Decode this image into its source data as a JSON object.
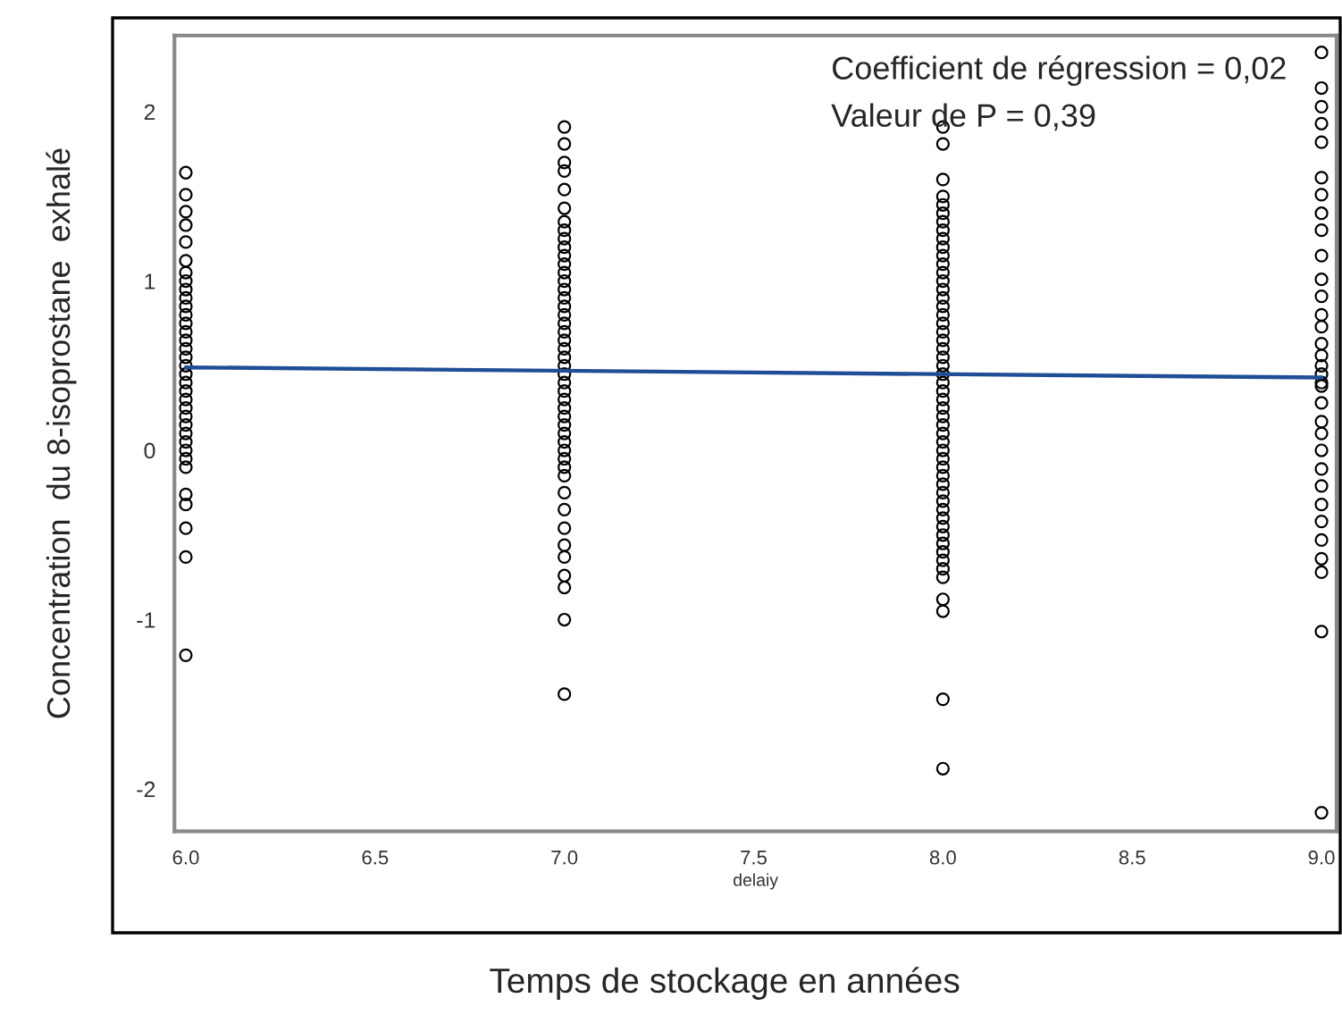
{
  "chart_data": {
    "type": "scatter",
    "xlabel": "delaiy",
    "ylabel": "Concentration  du 8-isoprostane  exhalé",
    "annotations": [
      "Coefficient de régression = 0,02",
      "Valeur de P = 0,39",
      "Temps de stockage en années"
    ],
    "xlim": [
      5.97,
      9.04
    ],
    "ylim": [
      -2.25,
      2.45
    ],
    "xticks": [
      {
        "value": 6,
        "label": "6.0"
      },
      {
        "value": 6.5,
        "label": "6.5"
      },
      {
        "value": 7,
        "label": "7.0"
      },
      {
        "value": 7.5,
        "label": "7.5"
      },
      {
        "value": 8,
        "label": "8.0"
      },
      {
        "value": 8.5,
        "label": "8.5"
      },
      {
        "value": 9,
        "label": "9.0"
      }
    ],
    "yticks": [
      -2,
      -1,
      0,
      1,
      2
    ],
    "marker": "circle",
    "series": [
      {
        "color": "#000000",
        "x": [
          6,
          6,
          6,
          6,
          6,
          6,
          6,
          6,
          6,
          6,
          6,
          6,
          6,
          6,
          6,
          6,
          6,
          6,
          6,
          6,
          6,
          6,
          6,
          6,
          6,
          6,
          6,
          6,
          6,
          6,
          6,
          6,
          6,
          6,
          6,
          7,
          7,
          7,
          7,
          7,
          7,
          7,
          7,
          7,
          7,
          7,
          7,
          7,
          7,
          7,
          7,
          7,
          7,
          7,
          7,
          7,
          7,
          7,
          7,
          7,
          7,
          7,
          7,
          7,
          7,
          7,
          7,
          7,
          7,
          7,
          7,
          7,
          7,
          7,
          7,
          7,
          7,
          7,
          7,
          7,
          7,
          8,
          8,
          8,
          8,
          8,
          8,
          8,
          8,
          8,
          8,
          8,
          8,
          8,
          8,
          8,
          8,
          8,
          8,
          8,
          8,
          8,
          8,
          8,
          8,
          8,
          8,
          8,
          8,
          8,
          8,
          8,
          8,
          8,
          8,
          8,
          8,
          8,
          8,
          8,
          8,
          8,
          8,
          8,
          8,
          8,
          8,
          8,
          8,
          8,
          8,
          8,
          8,
          8,
          9,
          9,
          9,
          9,
          9,
          9,
          9,
          9,
          9,
          9,
          9,
          9,
          9,
          9,
          9,
          9,
          9,
          9,
          9,
          9,
          9,
          9,
          9,
          9,
          9,
          9,
          9,
          9,
          9,
          9,
          9,
          9,
          9
        ],
        "values": [
          1.64,
          1.51,
          1.41,
          1.33,
          1.23,
          1.12,
          -0.1,
          -0.05,
          0,
          0.05,
          0.1,
          0.15,
          0.2,
          0.25,
          0.3,
          0.35,
          0.4,
          0.45,
          0.5,
          0.55,
          0.6,
          0.65,
          0.7,
          0.75,
          0.8,
          0.85,
          0.9,
          0.95,
          1.0,
          1.05,
          -0.26,
          -0.32,
          -0.46,
          -0.63,
          -1.21,
          1.91,
          1.81,
          1.7,
          1.65,
          1.54,
          1.43,
          -0.15,
          -0.1,
          -0.05,
          0,
          0.05,
          0.1,
          0.15,
          0.2,
          0.25,
          0.3,
          0.35,
          0.4,
          0.45,
          0.5,
          0.55,
          0.6,
          0.65,
          0.7,
          0.75,
          0.8,
          0.85,
          0.9,
          0.95,
          1.0,
          1.05,
          1.1,
          1.15,
          1.2,
          1.25,
          1.3,
          1.35,
          -0.25,
          -0.35,
          -0.46,
          -0.56,
          -0.63,
          -0.74,
          -0.81,
          -1.0,
          -1.44,
          1.91,
          1.81,
          1.6,
          -0.75,
          -0.7,
          -0.65,
          -0.6,
          -0.55,
          -0.5,
          -0.45,
          -0.4,
          -0.35,
          -0.3,
          -0.25,
          -0.2,
          -0.15,
          -0.1,
          -0.05,
          0,
          0.05,
          0.1,
          0.15,
          0.2,
          0.25,
          0.3,
          0.35,
          0.4,
          0.45,
          0.5,
          0.55,
          0.6,
          0.65,
          0.7,
          0.75,
          0.8,
          0.85,
          0.9,
          0.95,
          1.0,
          1.05,
          1.1,
          1.15,
          1.2,
          1.25,
          1.3,
          1.35,
          1.4,
          1.45,
          1.5,
          -0.88,
          -0.95,
          -1.47,
          -1.88,
          2.35,
          2.14,
          2.03,
          1.93,
          1.82,
          1.61,
          1.51,
          1.4,
          1.3,
          1.15,
          1.01,
          0.91,
          0.8,
          0.73,
          0.63,
          0.56,
          0.5,
          0.45,
          0.4,
          0.28,
          0.17,
          0.1,
          0.0,
          -0.11,
          -0.21,
          -0.32,
          -0.42,
          -0.53,
          -0.64,
          -0.72,
          -1.07,
          -2.14,
          0.38
        ]
      },
      {
        "type": "line",
        "color": "#1f4e96",
        "marker": "none",
        "x": [
          6,
          9
        ],
        "values": [
          0.49,
          0.43
        ]
      }
    ]
  }
}
